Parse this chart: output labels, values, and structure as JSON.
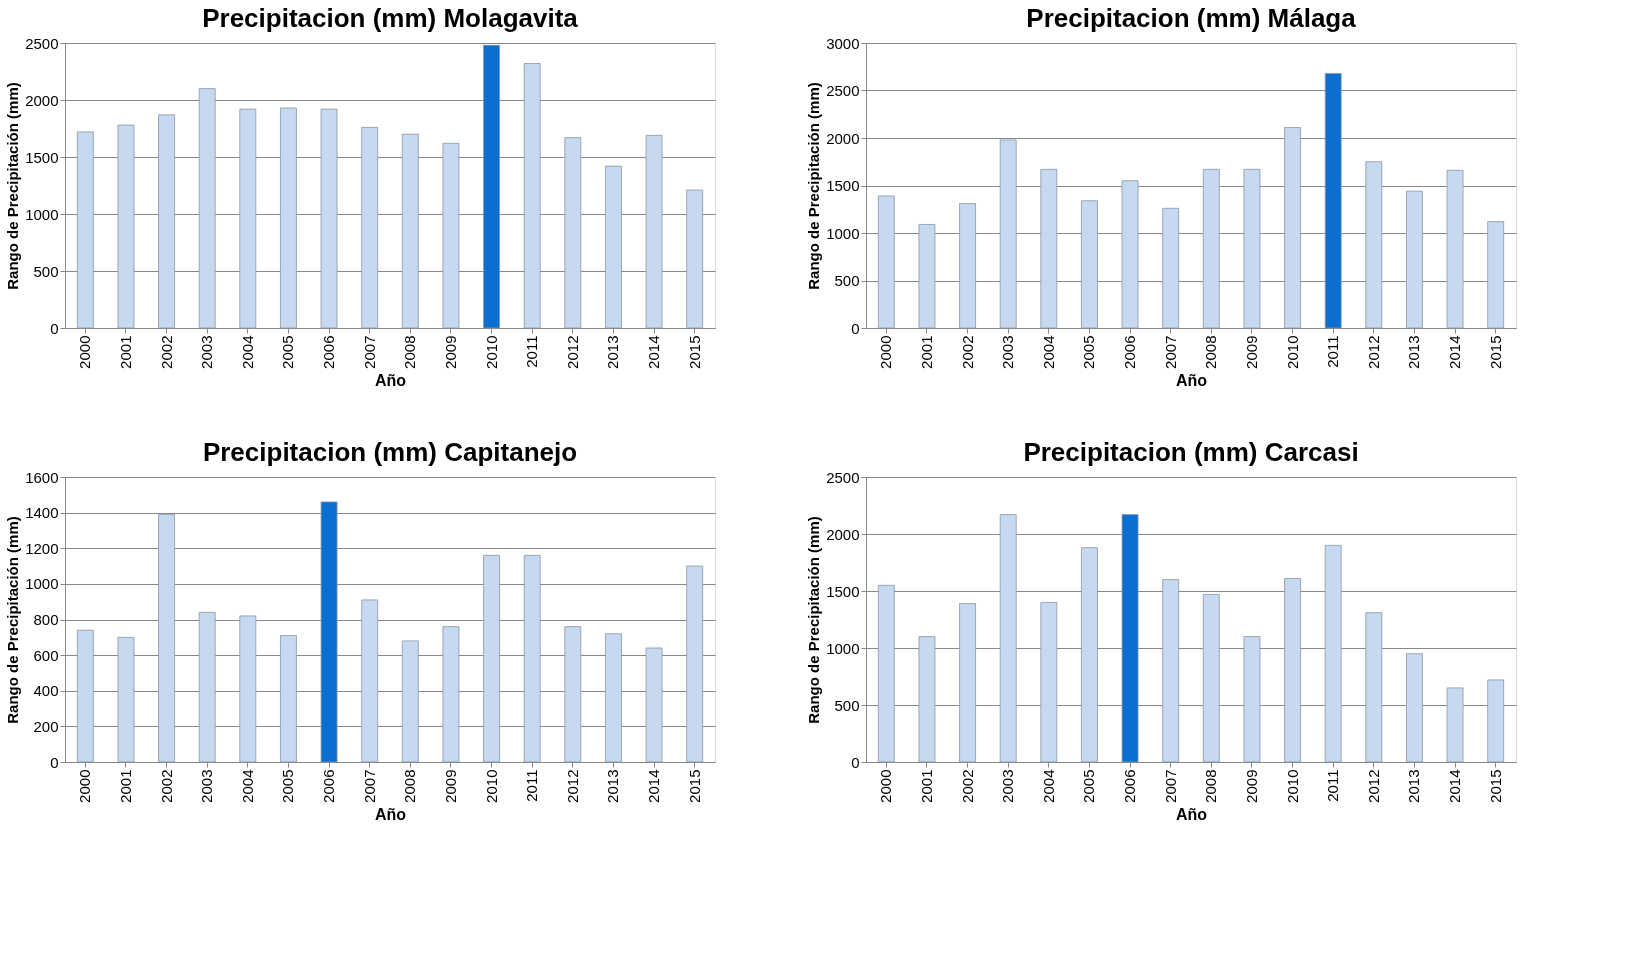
{
  "chart_data": [
    {
      "type": "bar",
      "title": "Precipitacion (mm) Molagavita",
      "xlabel": "Año",
      "ylabel": "Rango de Precipitación (mm)",
      "categories": [
        "2000",
        "2001",
        "2002",
        "2003",
        "2004",
        "2005",
        "2006",
        "2007",
        "2008",
        "2009",
        "2010",
        "2011",
        "2012",
        "2013",
        "2014",
        "2015"
      ],
      "values": [
        1720,
        1780,
        1870,
        2100,
        1920,
        1930,
        1920,
        1760,
        1700,
        1620,
        2480,
        2320,
        1670,
        1420,
        1690,
        1210
      ],
      "colors": [
        "#c6d9f1",
        "#c6d9f1",
        "#c6d9f1",
        "#c6d9f1",
        "#c6d9f1",
        "#c6d9f1",
        "#c6d9f1",
        "#c6d9f1",
        "#c6d9f1",
        "#c6d9f1",
        "#0a6fd0",
        "#c6d9f1",
        "#c6d9f1",
        "#c6d9f1",
        "#c6d9f1",
        "#c6d9f1"
      ],
      "ylim": [
        0,
        2500
      ],
      "yticks": [
        0,
        500,
        1000,
        1500,
        2000,
        2500
      ],
      "grid": "y",
      "legend": false
    },
    {
      "type": "bar",
      "title": "Precipitacion (mm) Málaga",
      "xlabel": "Año",
      "ylabel": "Rango de Precipitación (mm)",
      "categories": [
        "2000",
        "2001",
        "2002",
        "2003",
        "2004",
        "2005",
        "2006",
        "2007",
        "2008",
        "2009",
        "2010",
        "2011",
        "2012",
        "2013",
        "2014",
        "2015"
      ],
      "values": [
        1390,
        1090,
        1310,
        1980,
        1670,
        1340,
        1550,
        1260,
        1670,
        1670,
        2110,
        2680,
        1750,
        1440,
        1660,
        1120
      ],
      "colors": [
        "#c6d9f1",
        "#c6d9f1",
        "#c6d9f1",
        "#c6d9f1",
        "#c6d9f1",
        "#c6d9f1",
        "#c6d9f1",
        "#c6d9f1",
        "#c6d9f1",
        "#c6d9f1",
        "#c6d9f1",
        "#0a6fd0",
        "#c6d9f1",
        "#c6d9f1",
        "#c6d9f1",
        "#c6d9f1"
      ],
      "ylim": [
        0,
        3000
      ],
      "yticks": [
        0,
        500,
        1000,
        1500,
        2000,
        2500,
        3000
      ],
      "grid": "y",
      "legend": false
    },
    {
      "type": "bar",
      "title": "Precipitacion (mm) Capitanejo",
      "xlabel": "Año",
      "ylabel": "Rango de Precipitación (mm)",
      "categories": [
        "2000",
        "2001",
        "2002",
        "2003",
        "2004",
        "2005",
        "2006",
        "2007",
        "2008",
        "2009",
        "2010",
        "2011",
        "2012",
        "2013",
        "2014",
        "2015"
      ],
      "values": [
        740,
        700,
        1390,
        840,
        820,
        710,
        1460,
        910,
        680,
        760,
        1160,
        1160,
        760,
        720,
        640,
        1100
      ],
      "colors": [
        "#c6d9f1",
        "#c6d9f1",
        "#c6d9f1",
        "#c6d9f1",
        "#c6d9f1",
        "#c6d9f1",
        "#0a6fd0",
        "#c6d9f1",
        "#c6d9f1",
        "#c6d9f1",
        "#c6d9f1",
        "#c6d9f1",
        "#c6d9f1",
        "#c6d9f1",
        "#c6d9f1",
        "#c6d9f1"
      ],
      "ylim": [
        0,
        1600
      ],
      "yticks": [
        0,
        200,
        400,
        600,
        800,
        1000,
        1200,
        1400,
        1600
      ],
      "grid": "y",
      "legend": false
    },
    {
      "type": "bar",
      "title": "Precipitacion (mm) Carcasi",
      "xlabel": "Año",
      "ylabel": "Rango de Precipitación (mm)",
      "categories": [
        "2000",
        "2001",
        "2002",
        "2003",
        "2004",
        "2005",
        "2006",
        "2007",
        "2008",
        "2009",
        "2010",
        "2011",
        "2012",
        "2013",
        "2014",
        "2015"
      ],
      "values": [
        1550,
        1100,
        1390,
        2170,
        1400,
        1880,
        2170,
        1600,
        1470,
        1100,
        1610,
        1900,
        1310,
        950,
        650,
        720
      ],
      "colors": [
        "#c6d9f1",
        "#c6d9f1",
        "#c6d9f1",
        "#c6d9f1",
        "#c6d9f1",
        "#c6d9f1",
        "#0a6fd0",
        "#c6d9f1",
        "#c6d9f1",
        "#c6d9f1",
        "#c6d9f1",
        "#c6d9f1",
        "#c6d9f1",
        "#c6d9f1",
        "#c6d9f1",
        "#c6d9f1"
      ],
      "ylim": [
        0,
        2500
      ],
      "yticks": [
        0,
        500,
        1000,
        1500,
        2000,
        2500
      ],
      "grid": "y",
      "legend": false
    }
  ]
}
